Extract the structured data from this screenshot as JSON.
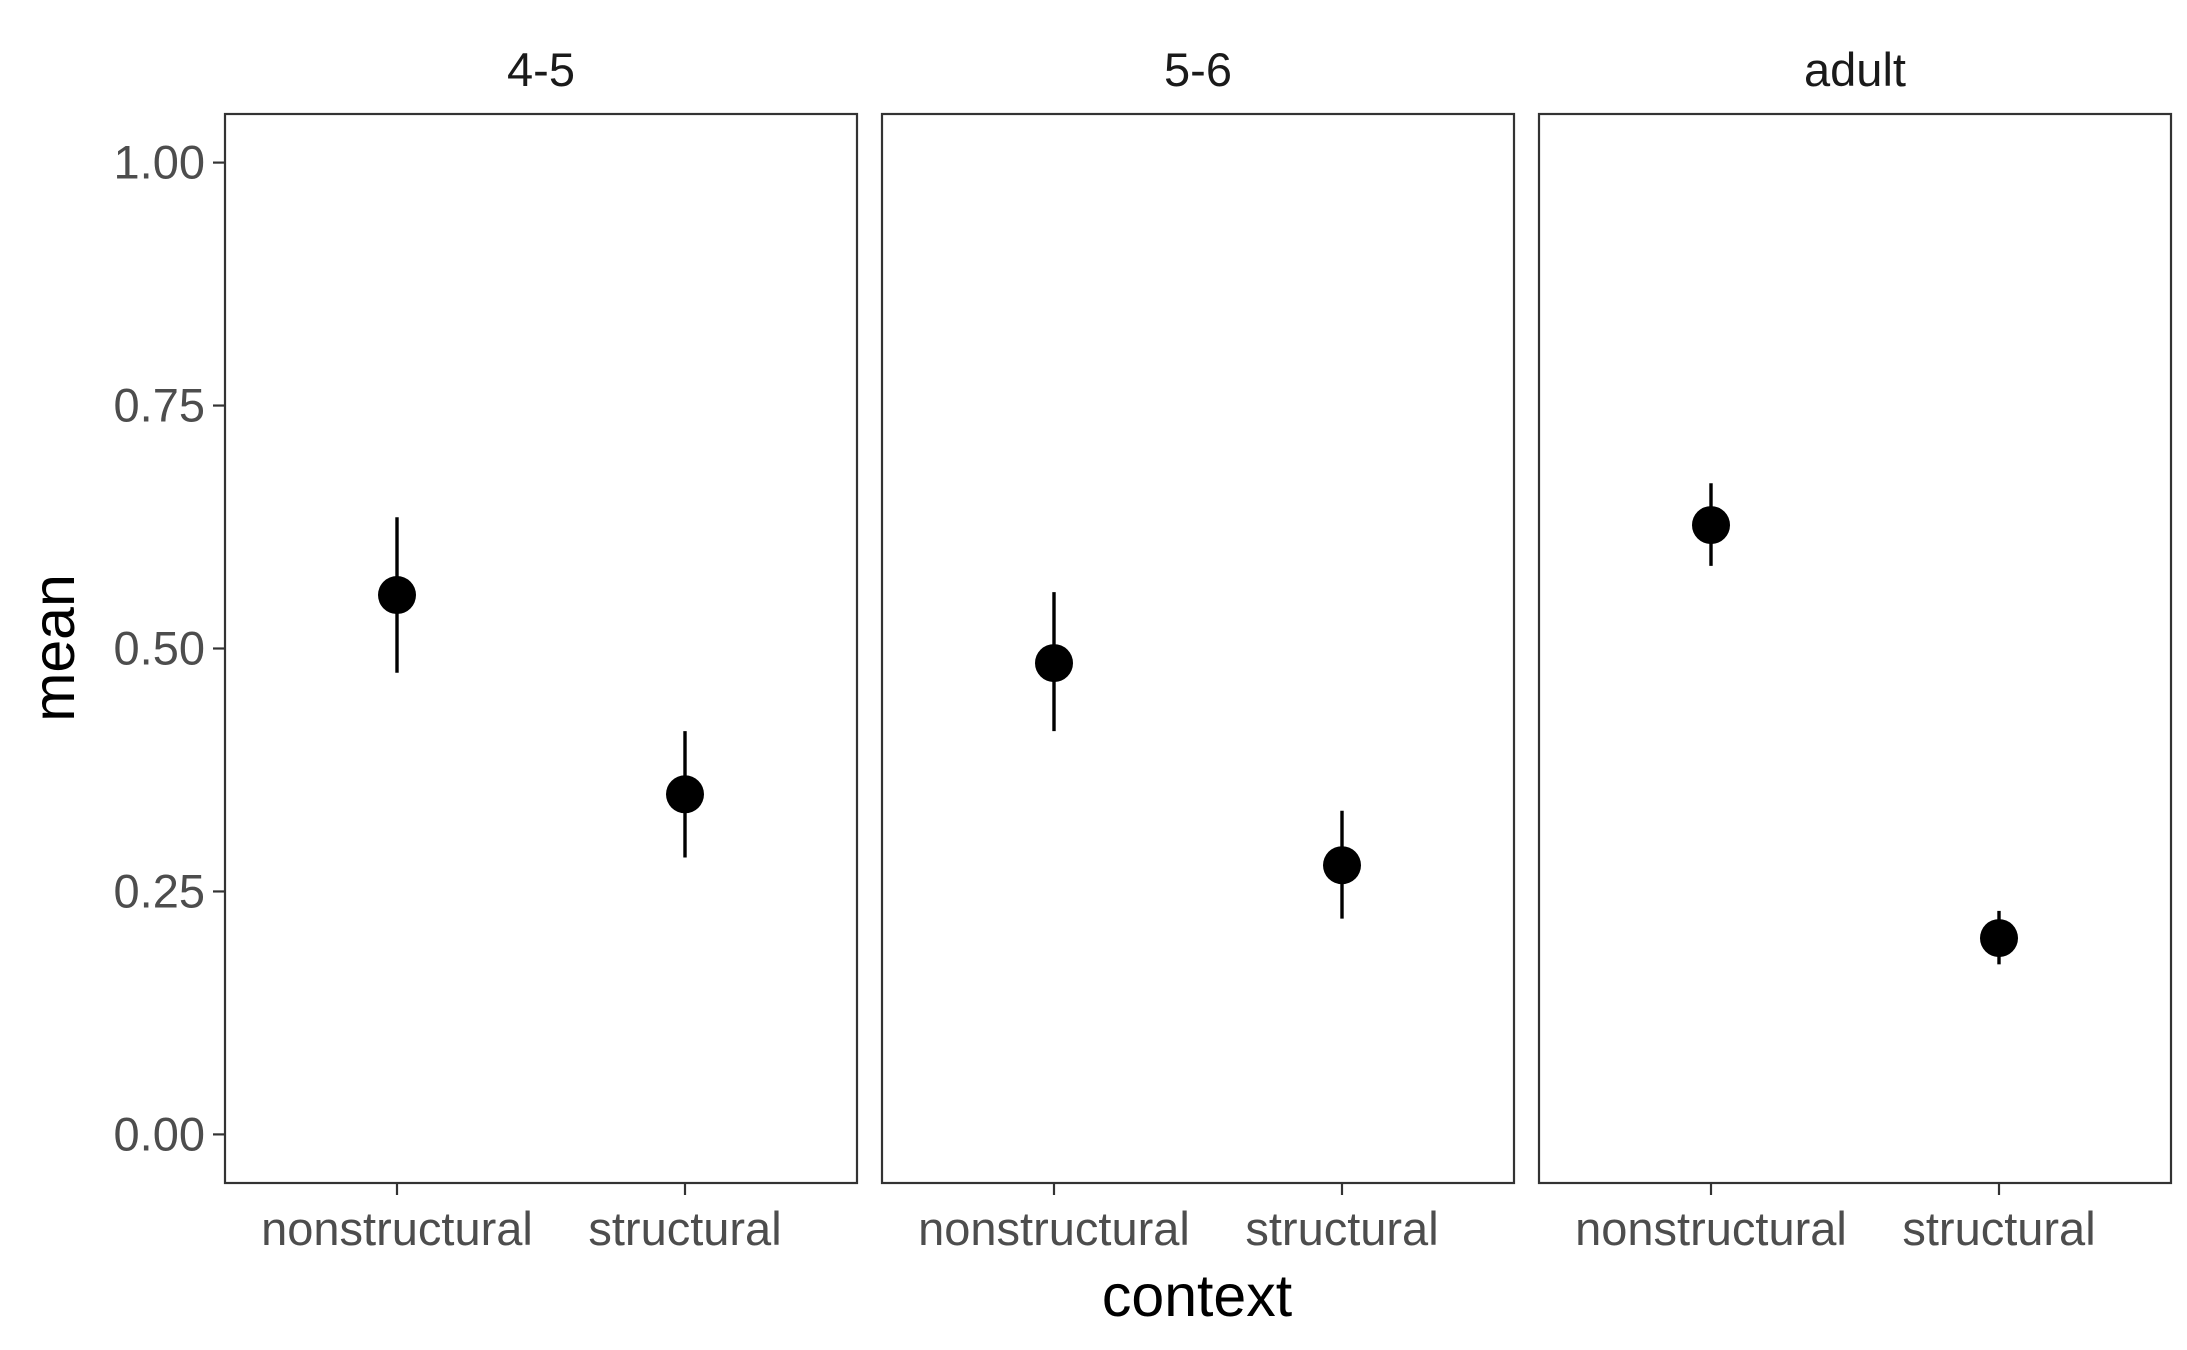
{
  "chart_data": {
    "type": "scatter",
    "facets": [
      "4-5",
      "5-6",
      "adult"
    ],
    "categories": [
      "nonstructural",
      "structural"
    ],
    "series": [
      {
        "facet": "4-5",
        "points": [
          {
            "x": "nonstructural",
            "y": 0.555,
            "ymin": 0.475,
            "ymax": 0.635
          },
          {
            "x": "structural",
            "y": 0.35,
            "ymin": 0.285,
            "ymax": 0.415
          }
        ]
      },
      {
        "facet": "5-6",
        "points": [
          {
            "x": "nonstructural",
            "y": 0.485,
            "ymin": 0.415,
            "ymax": 0.558
          },
          {
            "x": "structural",
            "y": 0.277,
            "ymin": 0.222,
            "ymax": 0.333
          }
        ]
      },
      {
        "facet": "adult",
        "points": [
          {
            "x": "nonstructural",
            "y": 0.627,
            "ymin": 0.585,
            "ymax": 0.67
          },
          {
            "x": "structural",
            "y": 0.202,
            "ymin": 0.175,
            "ymax": 0.23
          }
        ]
      }
    ],
    "xlabel": "context",
    "ylabel": "mean",
    "ylim": [
      -0.05,
      1.05
    ],
    "yticks": [
      0,
      0.25,
      0.5,
      0.75,
      1
    ],
    "ytick_labels": [
      "0.00",
      "0.25",
      "0.50",
      "0.75",
      "1.00"
    ],
    "grid": false,
    "legend": "none",
    "colors": {
      "points": "#000000",
      "panel_border": "#333333",
      "tick_text": "#4d4d4d"
    }
  }
}
